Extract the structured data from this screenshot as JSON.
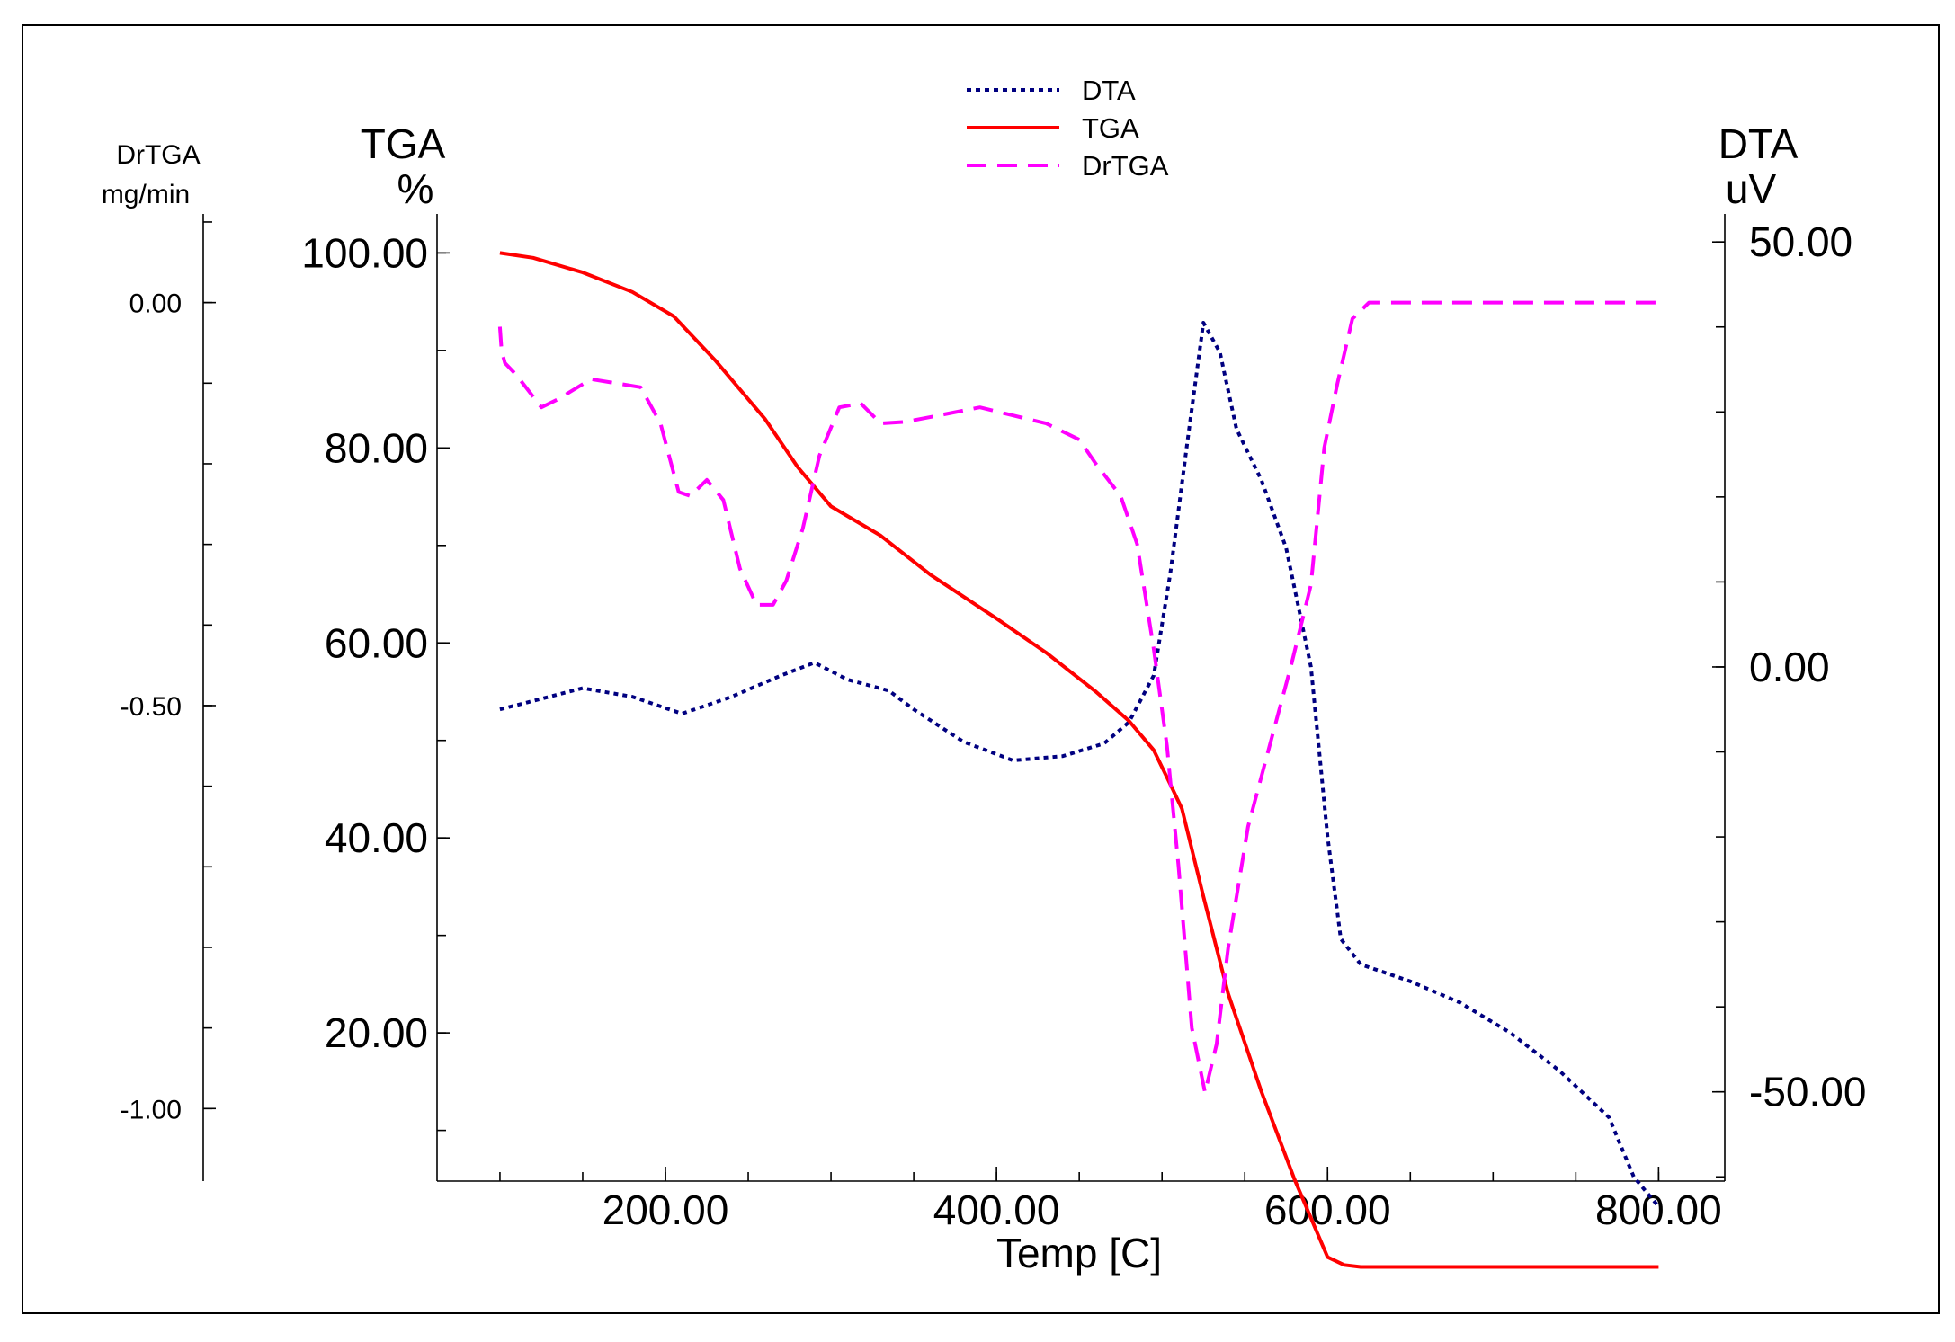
{
  "chart_data": {
    "type": "line",
    "xlabel": "Temp  [C]",
    "xlim": [
      62,
      840
    ],
    "x_ticks": [
      {
        "value": 200,
        "label": "200.00"
      },
      {
        "value": 400,
        "label": "400.00"
      },
      {
        "value": 600,
        "label": "600.00"
      },
      {
        "value": 800,
        "label": "800.00"
      }
    ],
    "axes": {
      "tga": {
        "title": "TGA",
        "unit": "%",
        "lim": [
          4.8,
          104
        ],
        "ticks": [
          {
            "value": 100,
            "label": "100.00"
          },
          {
            "value": 80,
            "label": "80.00"
          },
          {
            "value": 60,
            "label": "60.00"
          },
          {
            "value": 40,
            "label": "40.00"
          },
          {
            "value": 20,
            "label": "20.00"
          }
        ]
      },
      "dta": {
        "title": "DTA",
        "unit": "uV",
        "lim": [
          -60.5,
          53.3
        ],
        "ticks": [
          {
            "value": 50,
            "label": "50.00"
          },
          {
            "value": 0,
            "label": "0.00"
          },
          {
            "value": -50,
            "label": "-50.00"
          }
        ]
      },
      "drtga": {
        "title": "DrTGA",
        "unit": "mg/min",
        "lim": [
          -1.09,
          0.11
        ],
        "ticks": [
          {
            "value": 0,
            "label": "0.00"
          },
          {
            "value": -0.5,
            "label": "-0.50"
          },
          {
            "value": -1,
            "label": "-1.00"
          }
        ]
      }
    },
    "series": [
      {
        "name": "DTA",
        "axis": "dta",
        "color": "#000080",
        "dash": "dotted",
        "x": [
          100,
          120,
          150,
          180,
          210,
          240,
          270,
          290,
          310,
          335,
          350,
          380,
          410,
          440,
          465,
          480,
          495,
          505,
          515,
          525,
          535,
          545,
          560,
          575,
          590,
          600,
          608,
          620,
          650,
          680,
          710,
          740,
          770,
          785,
          800
        ],
        "y": [
          -5.0,
          -4.0,
          -2.5,
          -3.5,
          -5.5,
          -3.5,
          -1.0,
          0.5,
          -1.5,
          -2.8,
          -5.0,
          -8.8,
          -11.0,
          -10.5,
          -9.0,
          -6.5,
          -1.0,
          11.0,
          26.0,
          40.5,
          37.0,
          28.0,
          22.0,
          14.0,
          0.0,
          -20.0,
          -32.0,
          -35.0,
          -37.0,
          -39.5,
          -43.0,
          -47.5,
          -53.0,
          -60.0,
          -63.5
        ]
      },
      {
        "name": "TGA",
        "axis": "tga",
        "color": "#ff0000",
        "dash": "solid",
        "x": [
          100,
          120,
          150,
          180,
          205,
          230,
          260,
          280,
          300,
          330,
          360,
          400,
          430,
          460,
          480,
          495,
          505,
          512,
          525,
          540,
          560,
          580,
          600,
          610,
          620,
          700,
          800
        ],
        "y": [
          100.0,
          99.5,
          98.0,
          96.0,
          93.5,
          89.0,
          83.0,
          78.0,
          74.0,
          71.0,
          67.0,
          62.5,
          59.0,
          55.0,
          52.0,
          49.0,
          45.5,
          43.0,
          34.0,
          24.0,
          14.0,
          5.0,
          -3.0,
          -3.8,
          -4.0,
          -4.0,
          -4.0
        ]
      },
      {
        "name": "DrTGA",
        "axis": "drtga",
        "color": "#ff00ff",
        "dash": "dashed",
        "x": [
          100,
          101,
          103,
          110,
          125,
          135,
          155,
          170,
          185,
          197,
          208,
          215,
          225,
          235,
          245,
          255,
          265,
          273,
          283,
          293,
          305,
          318,
          330,
          345,
          365,
          390,
          410,
          430,
          450,
          460,
          475,
          485,
          495,
          503,
          510,
          518,
          526,
          533,
          540,
          552,
          565,
          578,
          590,
          598,
          606,
          615,
          625,
          650,
          700,
          750,
          800
        ],
        "y": [
          -0.03,
          -0.06,
          -0.075,
          -0.09,
          -0.13,
          -0.12,
          -0.095,
          -0.1,
          -0.105,
          -0.15,
          -0.235,
          -0.24,
          -0.22,
          -0.245,
          -0.33,
          -0.375,
          -0.375,
          -0.345,
          -0.28,
          -0.19,
          -0.13,
          -0.125,
          -0.15,
          -0.148,
          -0.14,
          -0.13,
          -0.14,
          -0.15,
          -0.17,
          -0.2,
          -0.24,
          -0.3,
          -0.43,
          -0.55,
          -0.7,
          -0.9,
          -0.98,
          -0.92,
          -0.8,
          -0.65,
          -0.55,
          -0.45,
          -0.35,
          -0.18,
          -0.1,
          -0.02,
          0.0,
          0.0,
          0.0,
          0.0,
          0.0
        ]
      }
    ]
  }
}
